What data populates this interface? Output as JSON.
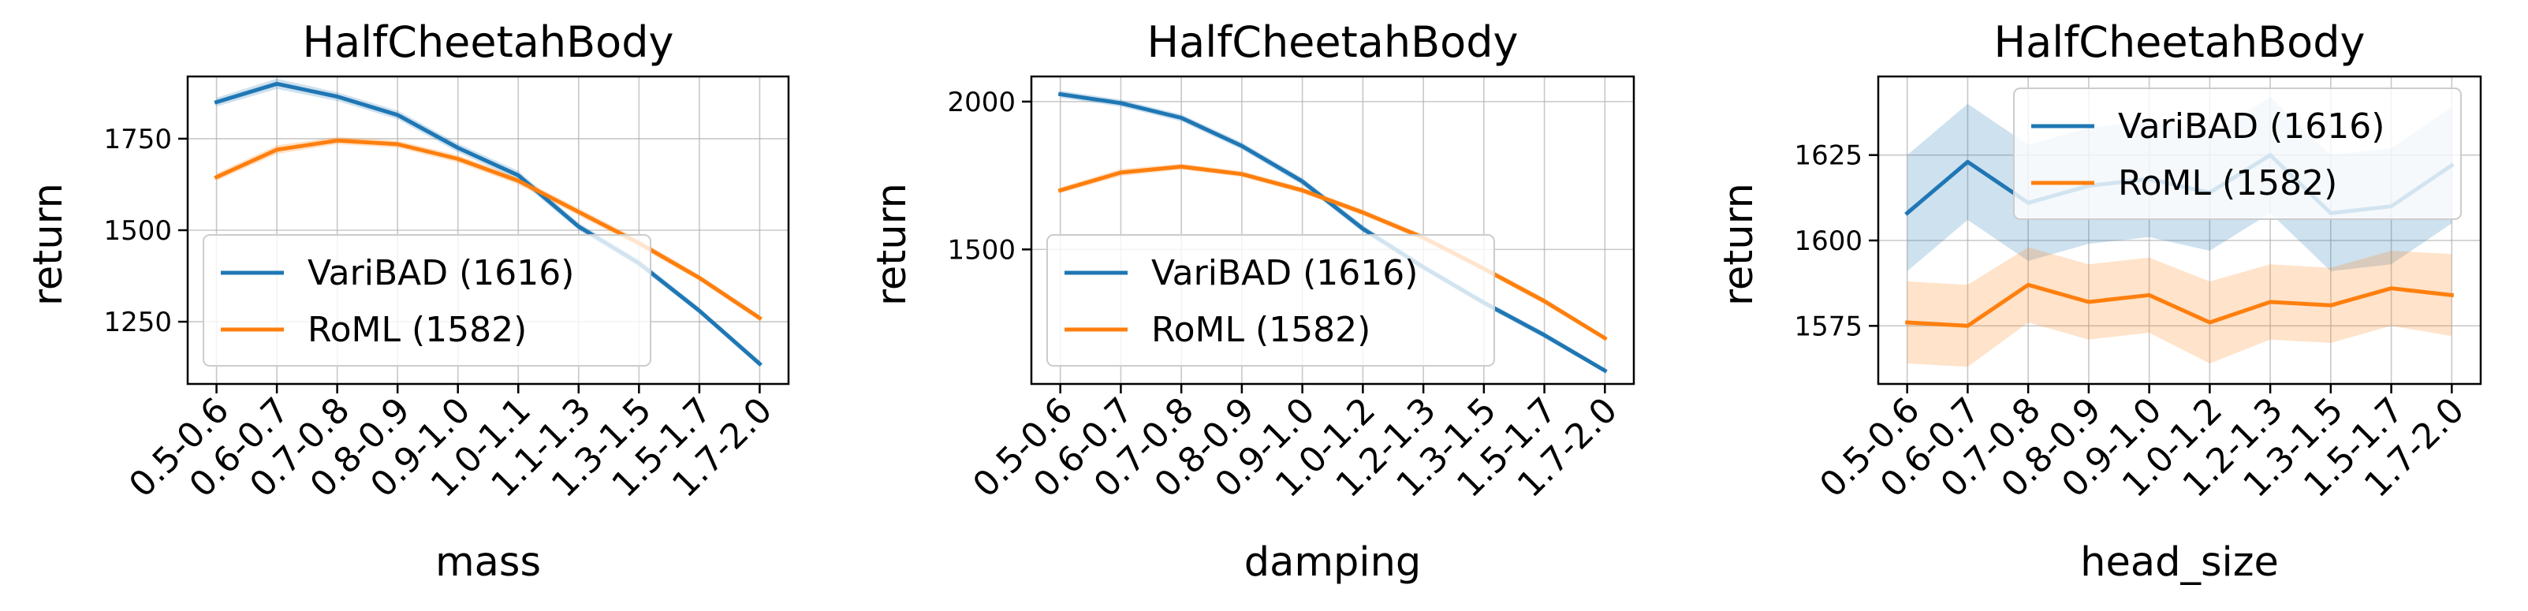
{
  "colors": {
    "VariBAD": "#1f77b4",
    "RoML": "#ff7f0e"
  },
  "chart_data": [
    {
      "type": "line",
      "title": "HalfCheetahBody",
      "xlabel": "mass",
      "ylabel": "return",
      "categories": [
        "0.5-0.6",
        "0.6-0.7",
        "0.7-0.8",
        "0.8-0.9",
        "0.9-1.0",
        "1.0-1.1",
        "1.1-1.3",
        "1.3-1.5",
        "1.5-1.7",
        "1.7-2.0"
      ],
      "ylim": [
        1080,
        1920
      ],
      "yticks": [
        1250,
        1500,
        1750
      ],
      "grid": true,
      "legend_position": "lower-left",
      "series": [
        {
          "name": "VariBAD (1616)",
          "color": "#1f77b4",
          "values": [
            1850,
            1900,
            1865,
            1815,
            1725,
            1650,
            1510,
            1410,
            1280,
            1135
          ],
          "band": [
            12,
            14,
            12,
            12,
            12,
            12,
            10,
            10,
            8,
            8
          ]
        },
        {
          "name": "RoML (1582)",
          "color": "#ff7f0e",
          "values": [
            1645,
            1720,
            1745,
            1735,
            1695,
            1635,
            1550,
            1465,
            1370,
            1260
          ],
          "band": [
            10,
            12,
            10,
            10,
            10,
            10,
            10,
            10,
            8,
            8
          ]
        }
      ]
    },
    {
      "type": "line",
      "title": "HalfCheetahBody",
      "xlabel": "damping",
      "ylabel": "return",
      "categories": [
        "0.5-0.6",
        "0.6-0.7",
        "0.7-0.8",
        "0.8-0.9",
        "0.9-1.0",
        "1.0-1.2",
        "1.2-1.3",
        "1.3-1.5",
        "1.5-1.7",
        "1.7-2.0"
      ],
      "ylim": [
        1045,
        2085
      ],
      "yticks": [
        1500,
        2000
      ],
      "grid": true,
      "legend_position": "lower-left",
      "series": [
        {
          "name": "VariBAD (1616)",
          "color": "#1f77b4",
          "values": [
            2025,
            1995,
            1945,
            1850,
            1730,
            1570,
            1440,
            1320,
            1210,
            1090
          ],
          "band": [
            12,
            12,
            12,
            12,
            12,
            12,
            10,
            10,
            10,
            8
          ]
        },
        {
          "name": "RoML (1582)",
          "color": "#ff7f0e",
          "values": [
            1700,
            1760,
            1780,
            1755,
            1700,
            1625,
            1540,
            1435,
            1325,
            1200
          ],
          "band": [
            10,
            12,
            10,
            10,
            10,
            10,
            10,
            10,
            10,
            8
          ]
        }
      ]
    },
    {
      "type": "line",
      "title": "HalfCheetahBody",
      "xlabel": "head_size",
      "ylabel": "return",
      "categories": [
        "0.5-0.6",
        "0.6-0.7",
        "0.7-0.8",
        "0.8-0.9",
        "0.9-1.0",
        "1.0-1.2",
        "1.2-1.3",
        "1.3-1.5",
        "1.5-1.7",
        "1.7-2.0"
      ],
      "ylim": [
        1558,
        1648
      ],
      "yticks": [
        1575,
        1600,
        1625
      ],
      "grid": true,
      "legend_position": "upper-right",
      "series": [
        {
          "name": "VariBAD (1616)",
          "color": "#1f77b4",
          "values": [
            1608,
            1623,
            1611,
            1616,
            1618,
            1614,
            1625,
            1608,
            1610,
            1622
          ],
          "band": [
            17,
            17,
            17,
            17,
            17,
            17,
            17,
            17,
            17,
            17
          ]
        },
        {
          "name": "RoML (1582)",
          "color": "#ff7f0e",
          "values": [
            1576,
            1575,
            1587,
            1582,
            1584,
            1576,
            1582,
            1581,
            1586,
            1584
          ],
          "band": [
            12,
            12,
            11,
            11,
            11,
            12,
            11,
            11,
            11,
            12
          ]
        }
      ]
    }
  ]
}
